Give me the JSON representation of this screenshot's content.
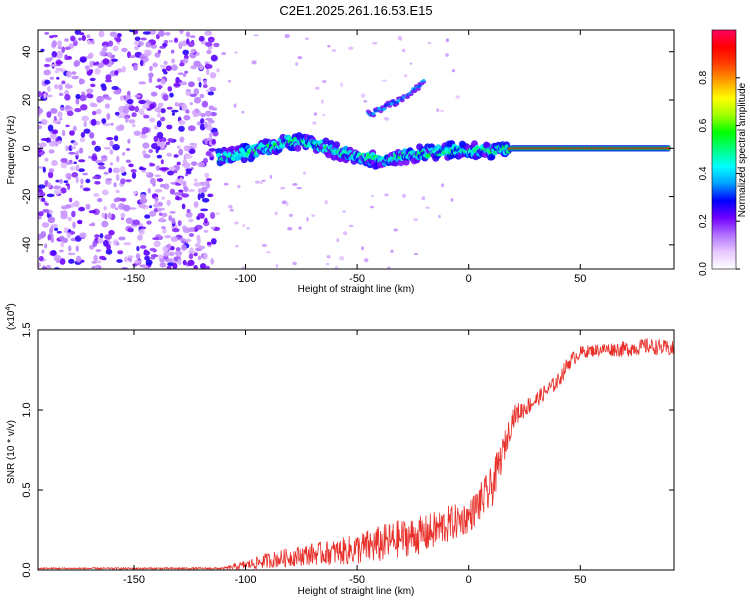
{
  "chart_data": [
    {
      "type": "heatmap",
      "title": "C2E1.2025.261.16.53.E15",
      "xlabel": "Height of straight line (km)",
      "ylabel": "Frequency (Hz)",
      "xlim": [
        -193,
        92
      ],
      "ylim": [
        -50,
        49
      ],
      "x_ticks": [
        -150,
        -100,
        -50,
        0,
        50
      ],
      "y_ticks": [
        -40,
        -20,
        0,
        20,
        40
      ],
      "x_tick_labels": [
        "-150",
        "-100",
        "-50",
        "0",
        "50"
      ],
      "y_tick_labels": [
        "-40",
        "-20",
        "0",
        "20",
        "40"
      ],
      "colorbar": {
        "label": "Normalized spectral amplitude",
        "range": [
          0,
          1
        ],
        "ticks": [
          0.0,
          0.2,
          0.4,
          0.6,
          0.8
        ],
        "tick_labels": [
          "0.0",
          "0.2",
          "0.4",
          "0.6",
          "0.8"
        ],
        "colors": [
          "#ffffff",
          "#e8c8ff",
          "#b070ff",
          "#7000ff",
          "#0000ff",
          "#00a0ff",
          "#00ffff",
          "#00ff80",
          "#00ff00",
          "#a0ff00",
          "#ffff00",
          "#ffa000",
          "#ff4000",
          "#ff0000",
          "#ff0060"
        ]
      },
      "features": [
        {
          "name": "noise-region",
          "x_range": [
            -193,
            -113
          ],
          "freq_range": [
            -50,
            49
          ],
          "amplitude": 0.1
        },
        {
          "name": "main-band",
          "points": [
            [
              -112,
              -4
            ],
            [
              -100,
              -2
            ],
            [
              -90,
              0
            ],
            [
              -80,
              3
            ],
            [
              -70,
              2
            ],
            [
              -60,
              -1
            ],
            [
              -50,
              -3
            ],
            [
              -40,
              -5
            ],
            [
              -30,
              -3
            ],
            [
              -20,
              -2
            ],
            [
              -10,
              -1
            ],
            [
              0,
              -1
            ],
            [
              10,
              -1
            ],
            [
              20,
              0
            ],
            [
              50,
              0
            ],
            [
              90,
              0
            ]
          ],
          "amplitude_start": 0.4,
          "amplitude_end": 0.95
        },
        {
          "name": "rising-branch",
          "points": [
            [
              -45,
              14
            ],
            [
              -40,
              16
            ],
            [
              -35,
              18
            ],
            [
              -30,
              21
            ],
            [
              -25,
              24
            ],
            [
              -20,
              28
            ]
          ],
          "amplitude": 0.35
        }
      ]
    },
    {
      "type": "line",
      "xlabel": "Height of straight line (km)",
      "ylabel": "SNR (10 * v/v)",
      "scale_label": "(x10",
      "scale_exp": "4",
      "scale_close": ")",
      "xlim": [
        -193,
        92
      ],
      "ylim": [
        0,
        1.5
      ],
      "x_ticks": [
        -150,
        -100,
        -50,
        0,
        50
      ],
      "y_ticks": [
        0.0,
        0.5,
        1.0,
        1.5
      ],
      "x_tick_labels": [
        "-150",
        "-100",
        "-50",
        "0",
        "50"
      ],
      "y_tick_labels": [
        "0.0",
        "0.5",
        "1.0",
        "1.5"
      ],
      "color": "#e8302a",
      "series": [
        {
          "name": "SNR",
          "x": [
            -193,
            -110,
            -100,
            -90,
            -80,
            -70,
            -60,
            -50,
            -40,
            -30,
            -20,
            -10,
            0,
            5,
            10,
            15,
            20,
            30,
            40,
            45,
            50,
            60,
            70,
            80,
            92
          ],
          "y": [
            0.01,
            0.01,
            0.03,
            0.06,
            0.08,
            0.1,
            0.11,
            0.13,
            0.16,
            0.2,
            0.22,
            0.28,
            0.33,
            0.42,
            0.5,
            0.72,
            0.96,
            1.06,
            1.18,
            1.3,
            1.36,
            1.38,
            1.38,
            1.4,
            1.38
          ],
          "noise": [
            0.005,
            0.006,
            0.03,
            0.05,
            0.06,
            0.07,
            0.08,
            0.1,
            0.12,
            0.12,
            0.12,
            0.12,
            0.1,
            0.12,
            0.14,
            0.1,
            0.07,
            0.05,
            0.05,
            0.05,
            0.04,
            0.04,
            0.05,
            0.05,
            0.05
          ]
        }
      ]
    }
  ]
}
